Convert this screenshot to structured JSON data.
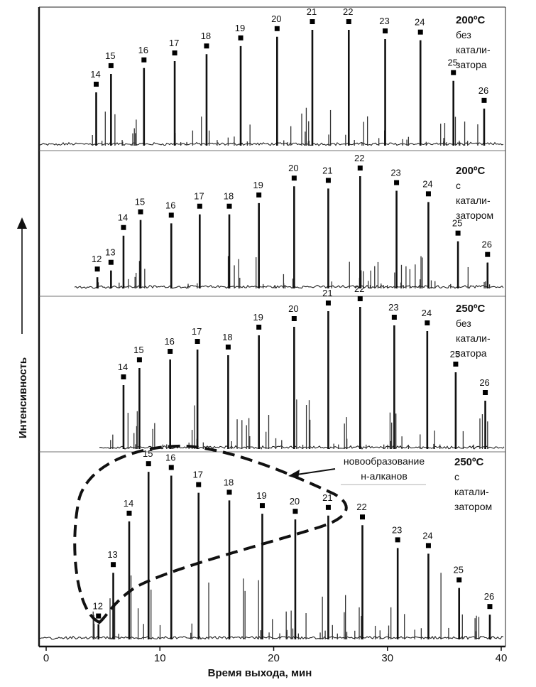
{
  "chart_data": {
    "type": "line",
    "title": "",
    "xlabel": "Время выхода, мин",
    "ylabel": "Интенсивность",
    "xlim": [
      0,
      40
    ],
    "xticks": [
      "0",
      "10",
      "20",
      "30",
      "40"
    ],
    "grid": false,
    "panels": [
      {
        "condition": [
          "200ºC",
          "без",
          "катали-",
          "затора"
        ],
        "peaks": [
          {
            "n": "14",
            "t": 4.4,
            "h": 0.46
          },
          {
            "n": "15",
            "t": 5.7,
            "h": 0.62
          },
          {
            "n": "16",
            "t": 8.6,
            "h": 0.67
          },
          {
            "n": "17",
            "t": 11.3,
            "h": 0.73
          },
          {
            "n": "18",
            "t": 14.1,
            "h": 0.79
          },
          {
            "n": "19",
            "t": 17.1,
            "h": 0.86
          },
          {
            "n": "20",
            "t": 20.3,
            "h": 0.94
          },
          {
            "n": "21",
            "t": 23.4,
            "h": 1.0
          },
          {
            "n": "22",
            "t": 26.6,
            "h": 1.0
          },
          {
            "n": "23",
            "t": 29.8,
            "h": 0.92
          },
          {
            "n": "24",
            "t": 32.9,
            "h": 0.91
          },
          {
            "n": "25",
            "t": 35.8,
            "h": 0.56
          },
          {
            "n": "26",
            "t": 38.5,
            "h": 0.32
          }
        ]
      },
      {
        "condition": [
          "200ºC",
          "с",
          "катали-",
          "затором"
        ],
        "peaks": [
          {
            "n": "12",
            "t": 4.5,
            "h": 0.1
          },
          {
            "n": "13",
            "t": 5.7,
            "h": 0.16
          },
          {
            "n": "14",
            "t": 6.8,
            "h": 0.47
          },
          {
            "n": "15",
            "t": 8.3,
            "h": 0.61
          },
          {
            "n": "16",
            "t": 11.0,
            "h": 0.58
          },
          {
            "n": "17",
            "t": 13.5,
            "h": 0.66
          },
          {
            "n": "18",
            "t": 16.1,
            "h": 0.66
          },
          {
            "n": "19",
            "t": 18.7,
            "h": 0.76
          },
          {
            "n": "20",
            "t": 21.8,
            "h": 0.91
          },
          {
            "n": "21",
            "t": 24.8,
            "h": 0.89
          },
          {
            "n": "22",
            "t": 27.6,
            "h": 1.0
          },
          {
            "n": "23",
            "t": 30.8,
            "h": 0.87
          },
          {
            "n": "24",
            "t": 33.6,
            "h": 0.77
          },
          {
            "n": "25",
            "t": 36.2,
            "h": 0.42
          },
          {
            "n": "26",
            "t": 38.8,
            "h": 0.23
          }
        ]
      },
      {
        "condition": [
          "250ºC",
          "без",
          "катали-",
          "затора"
        ],
        "peaks": [
          {
            "n": "14",
            "t": 6.8,
            "h": 0.45
          },
          {
            "n": "15",
            "t": 8.2,
            "h": 0.57
          },
          {
            "n": "16",
            "t": 10.9,
            "h": 0.63
          },
          {
            "n": "17",
            "t": 13.3,
            "h": 0.7
          },
          {
            "n": "18",
            "t": 16.0,
            "h": 0.66
          },
          {
            "n": "19",
            "t": 18.7,
            "h": 0.8
          },
          {
            "n": "20",
            "t": 21.8,
            "h": 0.86
          },
          {
            "n": "21",
            "t": 24.8,
            "h": 0.97
          },
          {
            "n": "22",
            "t": 27.6,
            "h": 1.0
          },
          {
            "n": "23",
            "t": 30.6,
            "h": 0.87
          },
          {
            "n": "24",
            "t": 33.5,
            "h": 0.83
          },
          {
            "n": "25",
            "t": 36.0,
            "h": 0.54
          },
          {
            "n": "26",
            "t": 38.6,
            "h": 0.34
          }
        ]
      },
      {
        "condition": [
          "250ºC",
          "с",
          "катали-",
          "затором"
        ],
        "peaks": [
          {
            "n": "12",
            "t": 4.6,
            "h": 0.08
          },
          {
            "n": "13",
            "t": 5.9,
            "h": 0.35
          },
          {
            "n": "14",
            "t": 7.3,
            "h": 0.62
          },
          {
            "n": "15",
            "t": 9.0,
            "h": 0.88
          },
          {
            "n": "16",
            "t": 11.0,
            "h": 0.86
          },
          {
            "n": "17",
            "t": 13.4,
            "h": 0.77
          },
          {
            "n": "18",
            "t": 16.1,
            "h": 0.73
          },
          {
            "n": "19",
            "t": 19.0,
            "h": 0.66
          },
          {
            "n": "20",
            "t": 21.9,
            "h": 0.63
          },
          {
            "n": "21",
            "t": 24.8,
            "h": 0.65
          },
          {
            "n": "22",
            "t": 27.8,
            "h": 0.6
          },
          {
            "n": "23",
            "t": 30.9,
            "h": 0.48
          },
          {
            "n": "24",
            "t": 33.6,
            "h": 0.45
          },
          {
            "n": "25",
            "t": 36.3,
            "h": 0.27
          },
          {
            "n": "26",
            "t": 39.0,
            "h": 0.13
          }
        ]
      }
    ],
    "annotation": {
      "text": [
        "новообразование",
        "н-алканов"
      ],
      "region_peaks": "12–21 (250ºC с катализатором)"
    }
  }
}
